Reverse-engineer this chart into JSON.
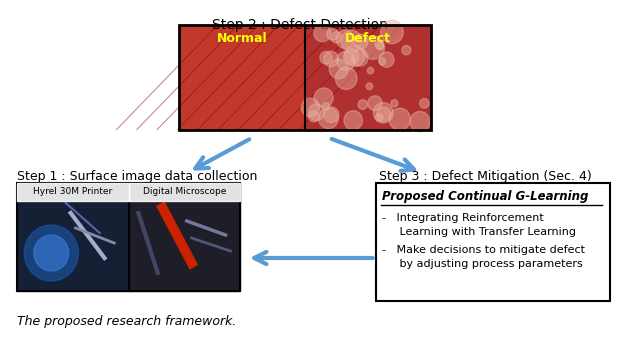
{
  "background_color": "#ffffff",
  "step2_label": "Step 2 : Defect Detection",
  "step1_label": "Step 1 : Surface image data collection",
  "step3_label": "Step 3 : Defect Mitigation (Sec. 4)",
  "normal_label": "Normal",
  "defect_label": "Defect",
  "box_title": "Proposed Continual G-Learning",
  "bullet1_line1": "-   Integrating Reinforcement",
  "bullet1_line2": "     Learning with Transfer Learning",
  "bullet2_line1": "-   Make decisions to mitigate defect",
  "bullet2_line2": "     by adjusting process parameters",
  "printer_label": "Hyrel 30M Printer",
  "microscope_label": "Digital Microscope",
  "caption": "The proposed research framework.",
  "arrow_color": "#5b9bd5",
  "fig_width": 6.4,
  "fig_height": 3.56
}
